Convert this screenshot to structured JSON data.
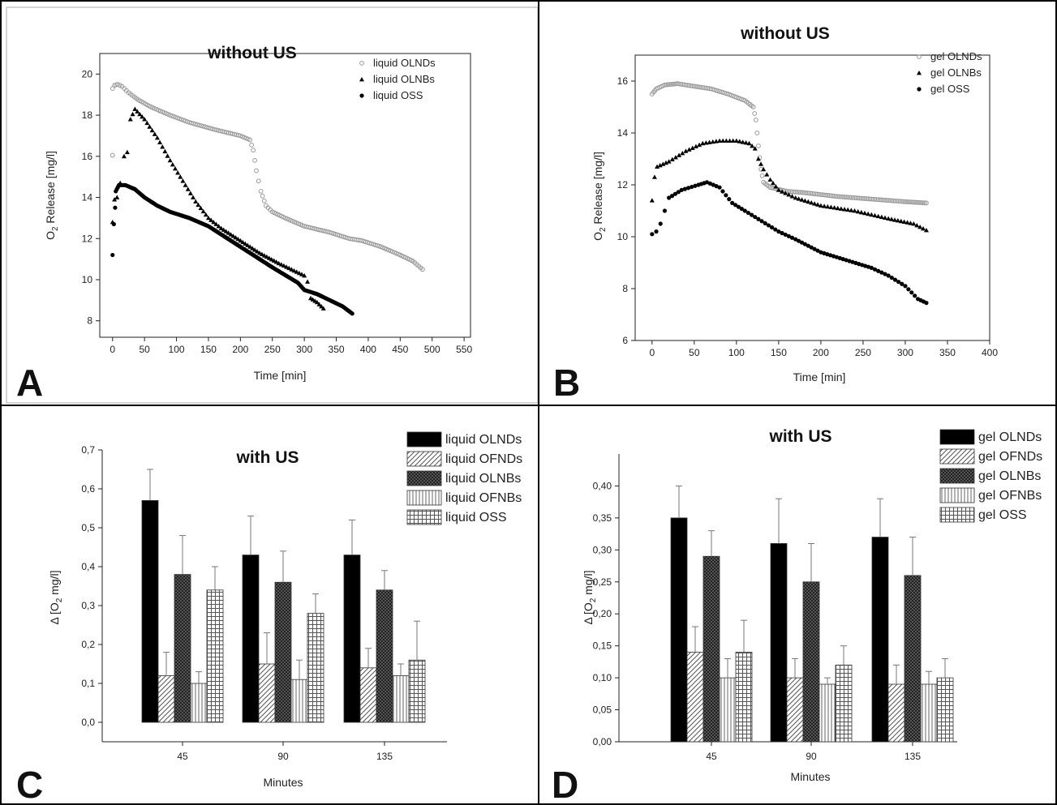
{
  "panels": [
    {
      "letter": "A",
      "chart_data": {
        "type": "scatter",
        "title": "without US",
        "xlabel": "Time [min]",
        "ylabel_main": "O",
        "ylabel_sub": "2",
        "ylabel_rest": " Release [mg/l]",
        "xlim": [
          -20,
          560
        ],
        "ylim": [
          7.2,
          21
        ],
        "xticks": [
          0,
          50,
          100,
          150,
          200,
          250,
          300,
          350,
          400,
          450,
          500,
          550
        ],
        "yticks": [
          8,
          10,
          12,
          14,
          16,
          18,
          20
        ],
        "legend_position": "top-right",
        "series": [
          {
            "name": "liquid OLNDs",
            "marker": "open-circle",
            "color": "#999999",
            "step": 3,
            "outliers": [
              [
                0,
                16.05
              ]
            ],
            "points": [
              [
                0,
                19.3
              ],
              [
                3,
                19.45
              ],
              [
                8,
                19.5
              ],
              [
                15,
                19.4
              ],
              [
                25,
                19.1
              ],
              [
                40,
                18.75
              ],
              [
                60,
                18.4
              ],
              [
                90,
                18.0
              ],
              [
                120,
                17.65
              ],
              [
                160,
                17.3
              ],
              [
                200,
                17.0
              ],
              [
                215,
                16.8
              ],
              [
                220,
                16.3
              ],
              [
                225,
                15.3
              ],
              [
                232,
                14.3
              ],
              [
                240,
                13.6
              ],
              [
                250,
                13.3
              ],
              [
                270,
                13.0
              ],
              [
                300,
                12.6
              ],
              [
                340,
                12.3
              ],
              [
                370,
                12.0
              ],
              [
                390,
                11.9
              ],
              [
                420,
                11.6
              ],
              [
                450,
                11.2
              ],
              [
                470,
                10.9
              ],
              [
                485,
                10.5
              ]
            ]
          },
          {
            "name": "liquid OLNBs",
            "marker": "filled-triangle",
            "color": "#000000",
            "step": 4,
            "outliers": [
              [
                0,
                12.8
              ],
              [
                3,
                13.9
              ],
              [
                7,
                14.0
              ],
              [
                12,
                14.7
              ],
              [
                18,
                16.0
              ],
              [
                23,
                16.2
              ]
            ],
            "points": [
              [
                28,
                17.8
              ],
              [
                35,
                18.3
              ],
              [
                50,
                17.8
              ],
              [
                70,
                16.9
              ],
              [
                90,
                15.8
              ],
              [
                110,
                14.8
              ],
              [
                130,
                13.8
              ],
              [
                150,
                13.0
              ],
              [
                170,
                12.5
              ],
              [
                200,
                11.9
              ],
              [
                230,
                11.3
              ],
              [
                260,
                10.8
              ],
              [
                280,
                10.5
              ],
              [
                300,
                10.2
              ],
              [
                305,
                9.9
              ],
              [
                310,
                9.1
              ],
              [
                320,
                8.9
              ],
              [
                330,
                8.6
              ]
            ]
          },
          {
            "name": "liquid OSS",
            "marker": "filled-circle",
            "color": "#000000",
            "step": 2,
            "outliers": [
              [
                0,
                11.2
              ],
              [
                2,
                12.7
              ],
              [
                4,
                13.5
              ]
            ],
            "points": [
              [
                5,
                14.3
              ],
              [
                10,
                14.6
              ],
              [
                20,
                14.6
              ],
              [
                35,
                14.4
              ],
              [
                50,
                14.0
              ],
              [
                70,
                13.6
              ],
              [
                90,
                13.3
              ],
              [
                120,
                13.0
              ],
              [
                150,
                12.6
              ],
              [
                200,
                11.6
              ],
              [
                250,
                10.6
              ],
              [
                290,
                9.85
              ],
              [
                300,
                9.5
              ],
              [
                320,
                9.3
              ],
              [
                340,
                9.0
              ],
              [
                360,
                8.7
              ],
              [
                375,
                8.35
              ]
            ]
          }
        ]
      }
    },
    {
      "letter": "B",
      "chart_data": {
        "type": "scatter",
        "title": "without US",
        "xlabel": "Time [min]",
        "ylabel_main": "O",
        "ylabel_sub": "2",
        "ylabel_rest": " Release [mg/l]",
        "xlim": [
          -20,
          400
        ],
        "ylim": [
          6,
          17
        ],
        "xticks": [
          0,
          50,
          100,
          150,
          200,
          250,
          300,
          350,
          400
        ],
        "yticks": [
          6,
          8,
          10,
          12,
          14,
          16
        ],
        "legend_position": "top-right",
        "series": [
          {
            "name": "gel OLNDs",
            "marker": "open-circle",
            "color": "#999999",
            "step": 2,
            "outliers": [],
            "points": [
              [
                0,
                15.5
              ],
              [
                5,
                15.7
              ],
              [
                15,
                15.85
              ],
              [
                30,
                15.9
              ],
              [
                50,
                15.8
              ],
              [
                70,
                15.7
              ],
              [
                90,
                15.5
              ],
              [
                110,
                15.25
              ],
              [
                120,
                15.0
              ],
              [
                123,
                14.5
              ],
              [
                126,
                13.5
              ],
              [
                129,
                12.6
              ],
              [
                132,
                12.1
              ],
              [
                140,
                11.9
              ],
              [
                160,
                11.75
              ],
              [
                180,
                11.7
              ],
              [
                220,
                11.55
              ],
              [
                260,
                11.45
              ],
              [
                300,
                11.35
              ],
              [
                325,
                11.3
              ]
            ]
          },
          {
            "name": "gel OLNBs",
            "marker": "filled-triangle",
            "color": "#000000",
            "step": 4,
            "outliers": [
              [
                0,
                11.4
              ],
              [
                3,
                12.3
              ]
            ],
            "points": [
              [
                6,
                12.7
              ],
              [
                20,
                12.9
              ],
              [
                40,
                13.3
              ],
              [
                60,
                13.6
              ],
              [
                80,
                13.7
              ],
              [
                100,
                13.7
              ],
              [
                115,
                13.6
              ],
              [
                122,
                13.4
              ],
              [
                126,
                13.0
              ],
              [
                132,
                12.6
              ],
              [
                140,
                12.2
              ],
              [
                150,
                11.8
              ],
              [
                170,
                11.5
              ],
              [
                200,
                11.2
              ],
              [
                240,
                11.0
              ],
              [
                280,
                10.7
              ],
              [
                310,
                10.5
              ],
              [
                325,
                10.25
              ]
            ]
          },
          {
            "name": "gel OSS",
            "marker": "filled-circle",
            "color": "#000000",
            "step": 4,
            "outliers": [
              [
                0,
                10.1
              ],
              [
                5,
                10.2
              ],
              [
                10,
                10.5
              ],
              [
                15,
                11.0
              ]
            ],
            "points": [
              [
                20,
                11.5
              ],
              [
                35,
                11.8
              ],
              [
                55,
                12.0
              ],
              [
                65,
                12.1
              ],
              [
                80,
                11.9
              ],
              [
                95,
                11.3
              ],
              [
                110,
                11.0
              ],
              [
                130,
                10.6
              ],
              [
                150,
                10.2
              ],
              [
                170,
                9.9
              ],
              [
                200,
                9.4
              ],
              [
                230,
                9.1
              ],
              [
                260,
                8.8
              ],
              [
                280,
                8.5
              ],
              [
                300,
                8.1
              ],
              [
                315,
                7.6
              ],
              [
                325,
                7.45
              ]
            ]
          }
        ]
      }
    },
    {
      "letter": "C",
      "chart_data": {
        "type": "bar",
        "title": "with US",
        "xlabel": "Minutes",
        "ylabel_main": "Δ [O",
        "ylabel_sub": "2",
        "ylabel_rest": " mg/l]",
        "categories": [
          "45",
          "90",
          "135"
        ],
        "ylim": [
          -0.05,
          0.7
        ],
        "yticks": [
          0.0,
          0.1,
          0.2,
          0.3,
          0.4,
          0.5,
          0.6,
          0.7
        ],
        "ytick_labels": [
          "0,0",
          "0,1",
          "0,2",
          "0,3",
          "0,4",
          "0,5",
          "0,6",
          "0,7"
        ],
        "legend_position": "top-right",
        "series": [
          {
            "name": "liquid OLNDs",
            "pattern": "solid",
            "values": [
              0.57,
              0.43,
              0.43
            ],
            "err": [
              0.08,
              0.1,
              0.09
            ]
          },
          {
            "name": "liquid OFNDs",
            "pattern": "diag",
            "values": [
              0.12,
              0.15,
              0.14
            ],
            "err": [
              0.06,
              0.08,
              0.05
            ]
          },
          {
            "name": "liquid OLNBs",
            "pattern": "dark",
            "values": [
              0.38,
              0.36,
              0.34
            ],
            "err": [
              0.1,
              0.08,
              0.05
            ]
          },
          {
            "name": "liquid OFNBs",
            "pattern": "vert",
            "values": [
              0.1,
              0.11,
              0.12
            ],
            "err": [
              0.03,
              0.05,
              0.03
            ]
          },
          {
            "name": "liquid OSS",
            "pattern": "grid",
            "values": [
              0.34,
              0.28,
              0.16
            ],
            "err": [
              0.06,
              0.05,
              0.1
            ]
          }
        ]
      }
    },
    {
      "letter": "D",
      "chart_data": {
        "type": "bar",
        "title": "with US",
        "xlabel": "Minutes",
        "ylabel_main": "Δ [O",
        "ylabel_sub": "2",
        "ylabel_rest": " mg/l]",
        "categories": [
          "45",
          "90",
          "135"
        ],
        "ylim": [
          0,
          0.45
        ],
        "yticks": [
          0.0,
          0.05,
          0.1,
          0.15,
          0.2,
          0.25,
          0.3,
          0.35,
          0.4
        ],
        "ytick_labels": [
          "0,00",
          "0,05",
          "0,10",
          "0,15",
          "0,20",
          "0,25",
          "0,30",
          "0,35",
          "0,40"
        ],
        "legend_position": "top-right",
        "series": [
          {
            "name": "gel OLNDs",
            "pattern": "solid",
            "values": [
              0.35,
              0.31,
              0.32
            ],
            "err": [
              0.05,
              0.07,
              0.06
            ]
          },
          {
            "name": "gel OFNDs",
            "pattern": "diag",
            "values": [
              0.14,
              0.1,
              0.09
            ],
            "err": [
              0.04,
              0.03,
              0.03
            ]
          },
          {
            "name": "gel OLNBs",
            "pattern": "dark",
            "values": [
              0.29,
              0.25,
              0.26
            ],
            "err": [
              0.04,
              0.06,
              0.06
            ]
          },
          {
            "name": "gel OFNBs",
            "pattern": "vert",
            "values": [
              0.1,
              0.09,
              0.09
            ],
            "err": [
              0.03,
              0.01,
              0.02
            ]
          },
          {
            "name": "gel OSS",
            "pattern": "grid",
            "values": [
              0.14,
              0.12,
              0.1
            ],
            "err": [
              0.05,
              0.03,
              0.03
            ]
          }
        ]
      }
    }
  ]
}
